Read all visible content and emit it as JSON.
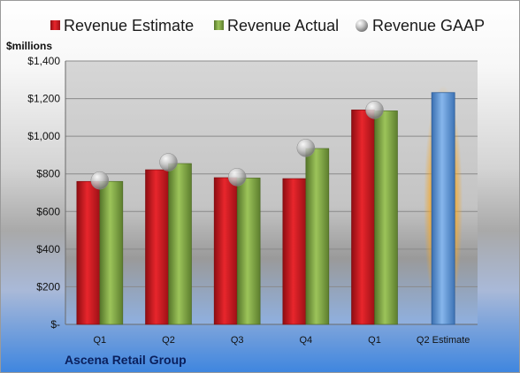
{
  "chart_data": {
    "type": "bar",
    "categories": [
      "Q1",
      "Q2",
      "Q3",
      "Q4",
      "Q1",
      "Q2 Estimate"
    ],
    "series": [
      {
        "name": "Revenue Estimate",
        "kind": "bar",
        "values": [
          760,
          822,
          780,
          775,
          1140,
          1232
        ],
        "color": "#d4151c",
        "estimate_color": "#5b9bd5"
      },
      {
        "name": "Revenue Actual",
        "kind": "bar",
        "values": [
          760,
          855,
          778,
          935,
          1135,
          null
        ],
        "color": "#7fa73a"
      },
      {
        "name": "Revenue GAAP",
        "kind": "marker",
        "values": [
          765,
          862,
          783,
          938,
          1140,
          null
        ],
        "color": "#b8b8b8"
      }
    ],
    "ylim": [
      0,
      1400
    ],
    "yticks": [
      0,
      200,
      400,
      600,
      800,
      1000,
      1200,
      1400
    ],
    "ytick_labels": [
      "$-",
      "$200",
      "$400",
      "$600",
      "$800",
      "$1,000",
      "$1,200",
      "$1,400"
    ],
    "ylabel": "$millions",
    "highlight_category": "Q2 Estimate",
    "highlight_color": "#f5a623",
    "legend_placement": "top",
    "grid": true
  },
  "footer": {
    "company": "Ascena Retail Group"
  }
}
